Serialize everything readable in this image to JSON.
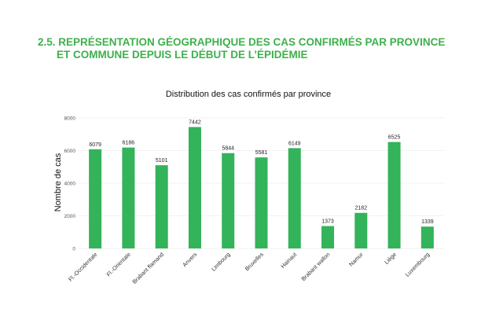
{
  "section": {
    "heading_line1": "2.5. REPRÉSENTATION GÉOGRAPHIQUE DES CAS CONFIRMÉS PAR PROVINCE",
    "heading_line2": "ET COMMUNE DEPUIS LE DÉBUT DE L’ÉPIDÉMIE"
  },
  "colors": {
    "heading": "#3db04b",
    "bar": "#33b35a",
    "grid": "#e6e6e6"
  },
  "chart_data": {
    "type": "bar",
    "title": "Distribution des cas confirmés par province",
    "xlabel": "",
    "ylabel": "Nombre de cas",
    "ylim": [
      0,
      8000
    ],
    "yticks": [
      "0",
      "2000",
      "4000",
      "6000",
      "8000"
    ],
    "grid": true,
    "categories": [
      "Fl.-Occidentale",
      "Fl.-Orientale",
      "Brabant flamand",
      "Anvers",
      "Limbourg",
      "Bruxelles",
      "Hainaut",
      "Brabant wallon",
      "Namur",
      "Liège",
      "Luxembourg"
    ],
    "values": [
      6079,
      6186,
      5101,
      7442,
      5844,
      5581,
      6149,
      1373,
      2182,
      6525,
      1339
    ],
    "value_labels": [
      "6079",
      "6186",
      "5101",
      "7442",
      "5844",
      "5581",
      "6149",
      "1373",
      "2182",
      "6525",
      "1339"
    ]
  }
}
